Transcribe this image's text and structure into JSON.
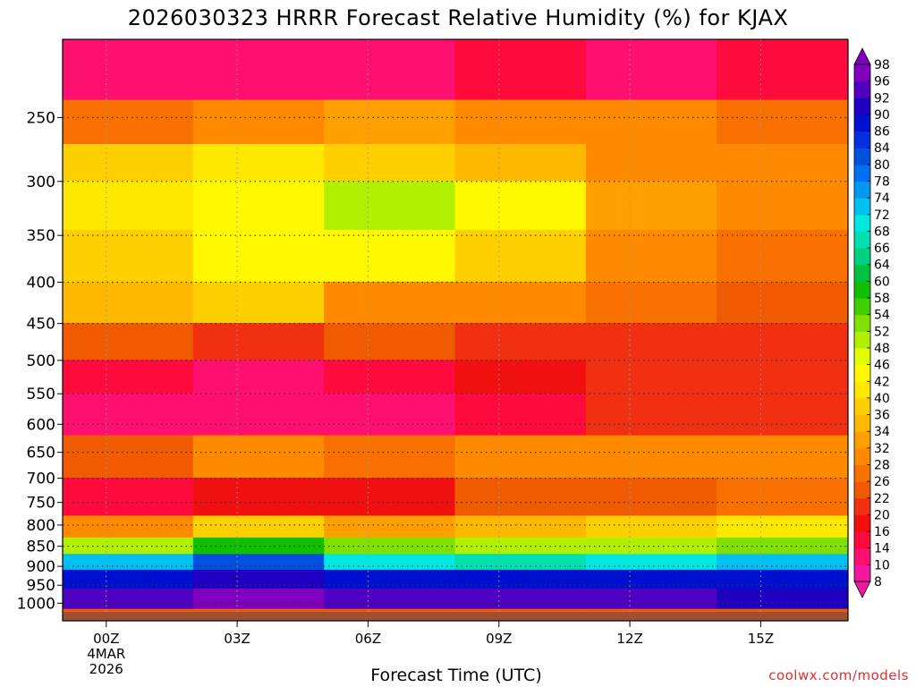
{
  "colors": {
    "plot_bg": "#f05a00",
    "ground": "#a05030",
    "credit": "#e0302e",
    "grid": "#333333"
  },
  "credit_text": "coolwx.com/models",
  "chart_data": {
    "type": "heatmap",
    "title": "2026030323 HRRR Forecast Relative Humidity (%) for KJAX",
    "xlabel": "Forecast Time (UTC)",
    "ylabel": "",
    "x_ticks": [
      "00Z",
      "03Z",
      "06Z",
      "09Z",
      "12Z",
      "15Z"
    ],
    "x_first_tick_sublabel": [
      "4MAR",
      "2026"
    ],
    "xlim_hours": [
      -1,
      17
    ],
    "y_ticks": [
      250,
      300,
      350,
      400,
      450,
      500,
      550,
      600,
      650,
      700,
      750,
      800,
      850,
      900,
      950,
      1000
    ],
    "ylim_hpa": [
      200,
      1025
    ],
    "y_scale": "log-pressure",
    "grid": true,
    "colorbar_levels": [
      8,
      10,
      14,
      16,
      20,
      22,
      26,
      28,
      32,
      34,
      36,
      40,
      42,
      46,
      48,
      52,
      54,
      58,
      60,
      64,
      66,
      68,
      72,
      74,
      78,
      80,
      84,
      86,
      90,
      92,
      96,
      98
    ],
    "colorbar_colors": [
      "#f018a0",
      "#ff1070",
      "#ff0a3c",
      "#f01010",
      "#f03010",
      "#f05a00",
      "#f87000",
      "#ff8a00",
      "#ffa000",
      "#ffb800",
      "#ffd000",
      "#ffe800",
      "#fff800",
      "#e0ff00",
      "#b0f000",
      "#80e000",
      "#40d000",
      "#10c000",
      "#00c040",
      "#00d080",
      "#00e0b0",
      "#00e8e0",
      "#00c0f0",
      "#0098f0",
      "#0070f0",
      "#0050e0",
      "#0030e0",
      "#0010d0",
      "#2000c0",
      "#5000c0",
      "#8000c0"
    ],
    "bands": [
      {
        "p_top": 200,
        "p_bot": 238,
        "values": [
          10,
          10,
          12,
          14,
          12,
          14
        ]
      },
      {
        "p_top": 238,
        "p_bot": 270,
        "values": [
          26,
          30,
          32,
          30,
          28,
          26
        ]
      },
      {
        "p_top": 270,
        "p_bot": 300,
        "values": [
          36,
          40,
          38,
          34,
          30,
          28
        ]
      },
      {
        "p_top": 300,
        "p_bot": 345,
        "values": [
          40,
          42,
          48,
          44,
          32,
          28
        ]
      },
      {
        "p_top": 345,
        "p_bot": 400,
        "values": [
          38,
          42,
          42,
          36,
          30,
          26
        ]
      },
      {
        "p_top": 400,
        "p_bot": 450,
        "values": [
          34,
          36,
          30,
          28,
          26,
          24
        ]
      },
      {
        "p_top": 450,
        "p_bot": 500,
        "values": [
          22,
          20,
          22,
          20,
          20,
          20
        ]
      },
      {
        "p_top": 500,
        "p_bot": 550,
        "values": [
          14,
          12,
          14,
          18,
          20,
          20
        ]
      },
      {
        "p_top": 550,
        "p_bot": 620,
        "values": [
          12,
          10,
          12,
          14,
          20,
          20
        ]
      },
      {
        "p_top": 620,
        "p_bot": 700,
        "values": [
          24,
          28,
          26,
          28,
          28,
          28
        ]
      },
      {
        "p_top": 700,
        "p_bot": 780,
        "values": [
          14,
          16,
          18,
          22,
          24,
          26
        ]
      },
      {
        "p_top": 780,
        "p_bot": 830,
        "values": [
          30,
          36,
          32,
          34,
          36,
          40
        ]
      },
      {
        "p_top": 830,
        "p_bot": 870,
        "values": [
          48,
          58,
          52,
          48,
          50,
          52
        ]
      },
      {
        "p_top": 870,
        "p_bot": 910,
        "values": [
          72,
          80,
          70,
          66,
          68,
          72
        ]
      },
      {
        "p_top": 910,
        "p_bot": 960,
        "values": [
          86,
          90,
          88,
          86,
          88,
          86
        ]
      },
      {
        "p_top": 960,
        "p_bot": 1015,
        "values": [
          92,
          96,
          94,
          92,
          92,
          90
        ]
      }
    ]
  }
}
